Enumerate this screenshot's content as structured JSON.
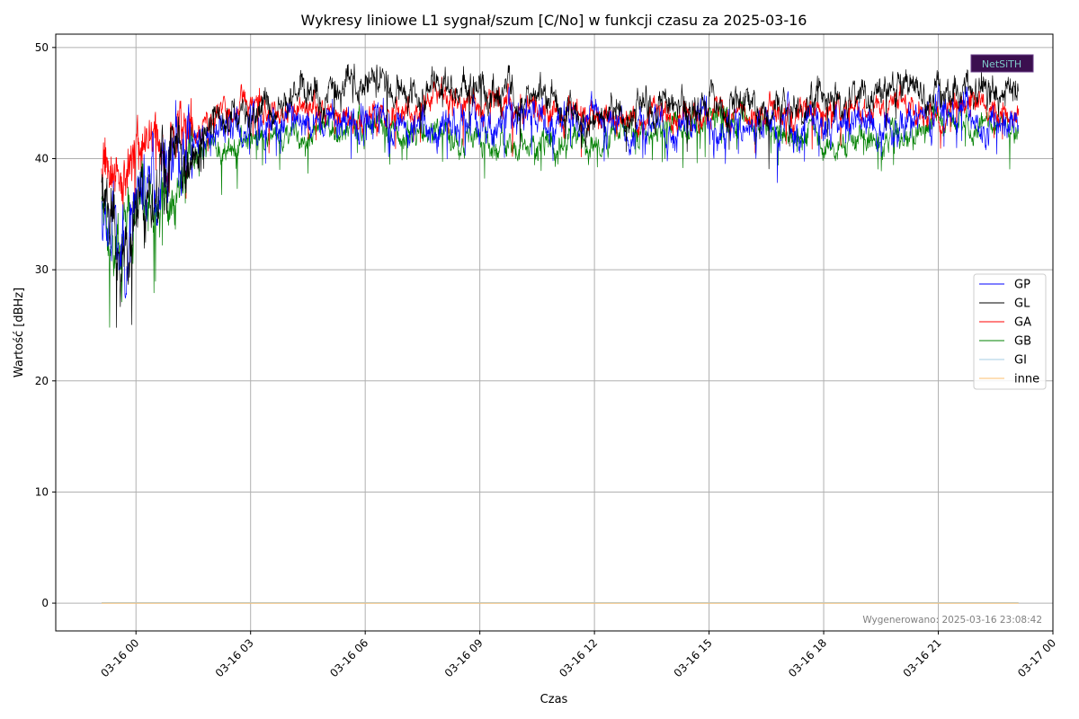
{
  "chart_data": {
    "type": "line",
    "title": "Wykresy liniowe L1 sygnał/szum [C/No] w funkcji czasu za 2025-03-16",
    "xlabel": "Czas",
    "ylabel": "Wartość [dBHz]",
    "x_start_hours": -0.9,
    "x_end_hours": 23.1,
    "xlim_hours": [
      -2.1,
      24.0
    ],
    "ylim": [
      -2.5,
      51.2
    ],
    "y_ticks": [
      0,
      10,
      20,
      30,
      40,
      50
    ],
    "x_ticks": [
      {
        "hours": 0,
        "label": "03-16 00"
      },
      {
        "hours": 3,
        "label": "03-16 03"
      },
      {
        "hours": 6,
        "label": "03-16 06"
      },
      {
        "hours": 9,
        "label": "03-16 09"
      },
      {
        "hours": 12,
        "label": "03-16 12"
      },
      {
        "hours": 15,
        "label": "03-16 15"
      },
      {
        "hours": 18,
        "label": "03-16 18"
      },
      {
        "hours": 21,
        "label": "03-16 21"
      },
      {
        "hours": 24,
        "label": "03-17 00"
      }
    ],
    "grid": true,
    "legend_position": "center-right",
    "series": [
      {
        "name": "GP",
        "color": "#0000ff",
        "samples": [
          [
            -0.9,
            37.5
          ],
          [
            -0.6,
            34
          ],
          [
            -0.4,
            30
          ],
          [
            -0.2,
            33
          ],
          [
            0,
            36
          ],
          [
            0.5,
            38
          ],
          [
            1,
            40
          ],
          [
            1.5,
            41
          ],
          [
            2,
            42.5
          ],
          [
            3,
            43
          ],
          [
            4,
            43.5
          ],
          [
            5,
            43
          ],
          [
            6,
            43.5
          ],
          [
            7,
            43
          ],
          [
            8,
            42.5
          ],
          [
            9,
            43.5
          ],
          [
            10,
            44
          ],
          [
            11,
            43
          ],
          [
            12,
            43.5
          ],
          [
            13,
            43
          ],
          [
            14,
            42.5
          ],
          [
            15,
            43.5
          ],
          [
            16,
            43
          ],
          [
            17,
            42.5
          ],
          [
            18,
            43
          ],
          [
            19,
            43
          ],
          [
            20,
            43
          ],
          [
            21,
            43.5
          ],
          [
            22,
            43.5
          ],
          [
            23.1,
            42.5
          ]
        ]
      },
      {
        "name": "GL",
        "color": "#000000",
        "samples": [
          [
            -0.9,
            38.5
          ],
          [
            -0.6,
            35
          ],
          [
            -0.45,
            28
          ],
          [
            -0.2,
            34
          ],
          [
            0,
            37
          ],
          [
            0.5,
            38
          ],
          [
            1,
            40
          ],
          [
            1.5,
            41.5
          ],
          [
            2,
            43.5
          ],
          [
            3,
            44
          ],
          [
            4,
            45.5
          ],
          [
            5,
            46
          ],
          [
            6,
            47
          ],
          [
            7,
            46
          ],
          [
            8,
            46.5
          ],
          [
            9,
            46.5
          ],
          [
            10,
            45.5
          ],
          [
            11,
            45
          ],
          [
            12,
            44
          ],
          [
            13,
            44
          ],
          [
            14,
            44.5
          ],
          [
            15,
            45
          ],
          [
            16,
            45
          ],
          [
            17,
            44.5
          ],
          [
            18,
            45.5
          ],
          [
            19,
            46
          ],
          [
            20,
            46
          ],
          [
            21,
            46
          ],
          [
            22,
            46
          ],
          [
            23.1,
            47
          ]
        ]
      },
      {
        "name": "GA",
        "color": "#ff0000",
        "samples": [
          [
            -0.9,
            40.5
          ],
          [
            -0.6,
            39
          ],
          [
            -0.4,
            38
          ],
          [
            0,
            40
          ],
          [
            0.5,
            41
          ],
          [
            1,
            41.5
          ],
          [
            1.5,
            42.5
          ],
          [
            2,
            44
          ],
          [
            2.5,
            45
          ],
          [
            3,
            45
          ],
          [
            4,
            44.5
          ],
          [
            5,
            44
          ],
          [
            6,
            44
          ],
          [
            7,
            44
          ],
          [
            8,
            45.5
          ],
          [
            9,
            45.5
          ],
          [
            10,
            44.5
          ],
          [
            11,
            44
          ],
          [
            12,
            44
          ],
          [
            13,
            43.5
          ],
          [
            14,
            43.5
          ],
          [
            15,
            44
          ],
          [
            16,
            44
          ],
          [
            17,
            44
          ],
          [
            18,
            44.5
          ],
          [
            19,
            44
          ],
          [
            20,
            45
          ],
          [
            21,
            44
          ],
          [
            22,
            44.5
          ],
          [
            23.1,
            44
          ]
        ]
      },
      {
        "name": "GB",
        "color": "#008000",
        "samples": [
          [
            -0.9,
            36.5
          ],
          [
            -0.6,
            35
          ],
          [
            -0.4,
            31
          ],
          [
            -0.2,
            34
          ],
          [
            0,
            36
          ],
          [
            0.5,
            37
          ],
          [
            1,
            38
          ],
          [
            1.5,
            39.5
          ],
          [
            2,
            41
          ],
          [
            3,
            41.5
          ],
          [
            4,
            42
          ],
          [
            5,
            42.5
          ],
          [
            6,
            43
          ],
          [
            7,
            42.5
          ],
          [
            8,
            42
          ],
          [
            9,
            41.5
          ],
          [
            10,
            41
          ],
          [
            11,
            41.5
          ],
          [
            12,
            42
          ],
          [
            13,
            42.5
          ],
          [
            14,
            43
          ],
          [
            15,
            43.5
          ],
          [
            16,
            43
          ],
          [
            17,
            42
          ],
          [
            18,
            41.5
          ],
          [
            19,
            41.5
          ],
          [
            20,
            42
          ],
          [
            21,
            43
          ],
          [
            22,
            43
          ],
          [
            23.1,
            42.5
          ]
        ]
      },
      {
        "name": "GI",
        "color": "#a6cee3",
        "samples": [
          [
            -0.9,
            0.05
          ],
          [
            23.1,
            0.05
          ]
        ]
      },
      {
        "name": "inne",
        "color": "#fdbf6f",
        "samples": [
          [
            -0.9,
            0.0
          ],
          [
            23.1,
            0.0
          ]
        ]
      }
    ],
    "footer": "Wygenerowano: 2025-03-16 23:08:42",
    "logo_text": "NetSiTH"
  }
}
